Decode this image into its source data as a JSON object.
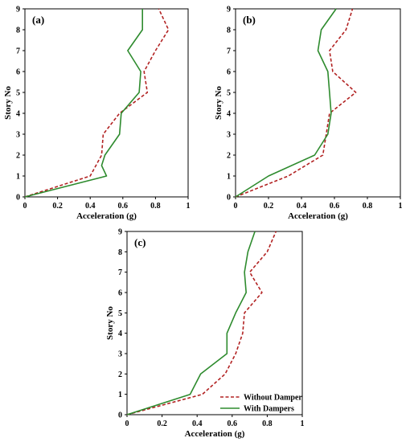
{
  "chart_data": [
    {
      "type": "line",
      "panel_label": "(a)",
      "xlabel": "Acceleration (g)",
      "ylabel": "Story No",
      "xlim": [
        0,
        1
      ],
      "ylim": [
        0,
        9
      ],
      "xticks": [
        "0",
        "0.2",
        "0.4",
        "0.6",
        "0.8",
        "1"
      ],
      "yticks": [
        "0",
        "1",
        "2",
        "3",
        "4",
        "5",
        "6",
        "7",
        "8",
        "9"
      ],
      "series": [
        {
          "name": "Without Damper",
          "color": "#b22222",
          "dash": true,
          "x": [
            0,
            0.4,
            0.47,
            0.48,
            0.48,
            0.58,
            0.75,
            0.73,
            0.8,
            0.88,
            0.82
          ],
          "y": [
            0,
            1,
            2,
            3,
            3,
            4,
            5,
            6,
            7,
            8,
            9
          ]
        },
        {
          "name": "With Dampers",
          "color": "#2e8b2e",
          "dash": false,
          "x": [
            0,
            0.5,
            0.47,
            0.49,
            0.58,
            0.59,
            0.7,
            0.71,
            0.63,
            0.72,
            0.72
          ],
          "y": [
            0,
            1,
            1.5,
            2,
            3,
            4,
            5,
            6,
            7,
            8,
            9
          ]
        }
      ]
    },
    {
      "type": "line",
      "panel_label": "(b)",
      "xlabel": "Acceleration (g)",
      "ylabel": "Story No",
      "xlim": [
        0,
        1
      ],
      "ylim": [
        0,
        9
      ],
      "xticks": [
        "0",
        "0.2",
        "0.4",
        "0.6",
        "0.8",
        "1"
      ],
      "yticks": [
        "0",
        "1",
        "2",
        "3",
        "4",
        "5",
        "6",
        "7",
        "8",
        "9"
      ],
      "series": [
        {
          "name": "Without Damper",
          "color": "#b22222",
          "dash": true,
          "x": [
            0,
            0.32,
            0.53,
            0.55,
            0.57,
            0.73,
            0.59,
            0.57,
            0.67,
            0.71
          ],
          "y": [
            0,
            1,
            2,
            3,
            4,
            5,
            6,
            7,
            8,
            9
          ]
        },
        {
          "name": "With Dampers",
          "color": "#2e8b2e",
          "dash": false,
          "x": [
            0,
            0.2,
            0.48,
            0.56,
            0.58,
            0.57,
            0.56,
            0.5,
            0.52,
            0.61
          ],
          "y": [
            0,
            1,
            2,
            3,
            4,
            5,
            6,
            7,
            8,
            9
          ]
        }
      ]
    },
    {
      "type": "line",
      "panel_label": "(c)",
      "xlabel": "Acceleration (g)",
      "ylabel": "Story No",
      "xlim": [
        0,
        1
      ],
      "ylim": [
        0,
        9
      ],
      "xticks": [
        "0",
        "0.2",
        "0.4",
        "0.6",
        "0.8",
        "1"
      ],
      "yticks": [
        "0",
        "1",
        "2",
        "3",
        "4",
        "5",
        "6",
        "7",
        "8",
        "9"
      ],
      "legend": [
        "Without Damper",
        "With Dampers"
      ],
      "series": [
        {
          "name": "Without Damper",
          "color": "#b22222",
          "dash": true,
          "x": [
            0,
            0.43,
            0.56,
            0.62,
            0.66,
            0.67,
            0.77,
            0.7,
            0.8,
            0.85
          ],
          "y": [
            0,
            1,
            2,
            3,
            4,
            5,
            6,
            7,
            8,
            9
          ]
        },
        {
          "name": "With Dampers",
          "color": "#2e8b2e",
          "dash": false,
          "x": [
            0,
            0.36,
            0.42,
            0.57,
            0.57,
            0.62,
            0.68,
            0.67,
            0.69,
            0.73
          ],
          "y": [
            0,
            1,
            2,
            3,
            4,
            5,
            6,
            7,
            8,
            9
          ]
        }
      ]
    }
  ]
}
